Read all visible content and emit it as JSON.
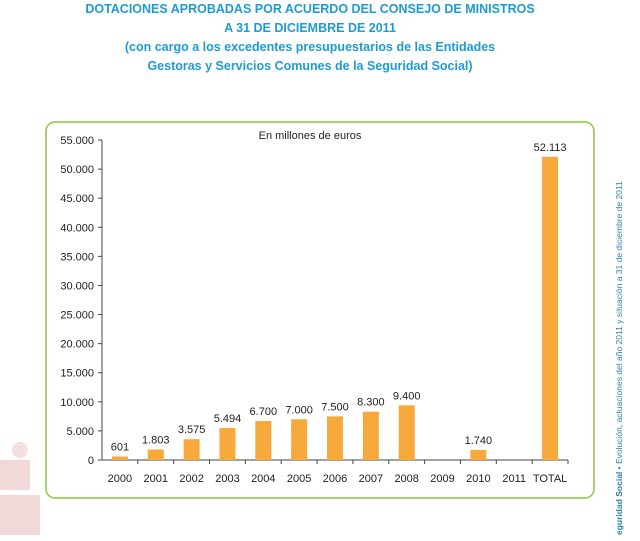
{
  "header": {
    "title_line1": "DOTACIONES APROBADAS POR ACUERDO DEL CONSEJO DE MINISTROS",
    "title_line2": "A 31 DE DICIEMBRE DE 2011",
    "subtitle_line1": "(con cargo a los excedentes presupuestarios de las Entidades",
    "subtitle_line2": "Gestoras y Servicios Comunes de la Seguridad Social)"
  },
  "side_text": {
    "bold": "eguridad Social",
    "rest": " • Evolución, actuaciones del año 2011 y situación a 31 de diciembre de 2011"
  },
  "colors": {
    "bar": "#f7a93b",
    "title": "#1f9bd3",
    "frame": "#8cc63f",
    "axis": "#444444"
  },
  "chart_data": {
    "type": "bar",
    "annotation": "En millones de euros",
    "categories": [
      "2000",
      "2001",
      "2002",
      "2003",
      "2004",
      "2005",
      "2006",
      "2007",
      "2008",
      "2009",
      "2010",
      "2011",
      "TOTAL"
    ],
    "values": [
      601,
      1803,
      3575,
      5494,
      6700,
      7000,
      7500,
      8300,
      9400,
      0,
      1740,
      0,
      52113
    ],
    "labels": [
      "601",
      "1.803",
      "3.575",
      "5.494",
      "6.700",
      "7.000",
      "7.500",
      "8.300",
      "9.400",
      "",
      "1.740",
      "",
      "52.113"
    ],
    "ylim": [
      0,
      55000
    ],
    "yticks": [
      0,
      5000,
      10000,
      15000,
      20000,
      25000,
      30000,
      35000,
      40000,
      45000,
      50000,
      55000
    ],
    "ytick_labels": [
      "0",
      "5.000",
      "10.000",
      "15.000",
      "20.000",
      "25.000",
      "30.000",
      "35.000",
      "40.000",
      "45.000",
      "50.000",
      "55.000"
    ],
    "grid": false,
    "legend": "none"
  }
}
